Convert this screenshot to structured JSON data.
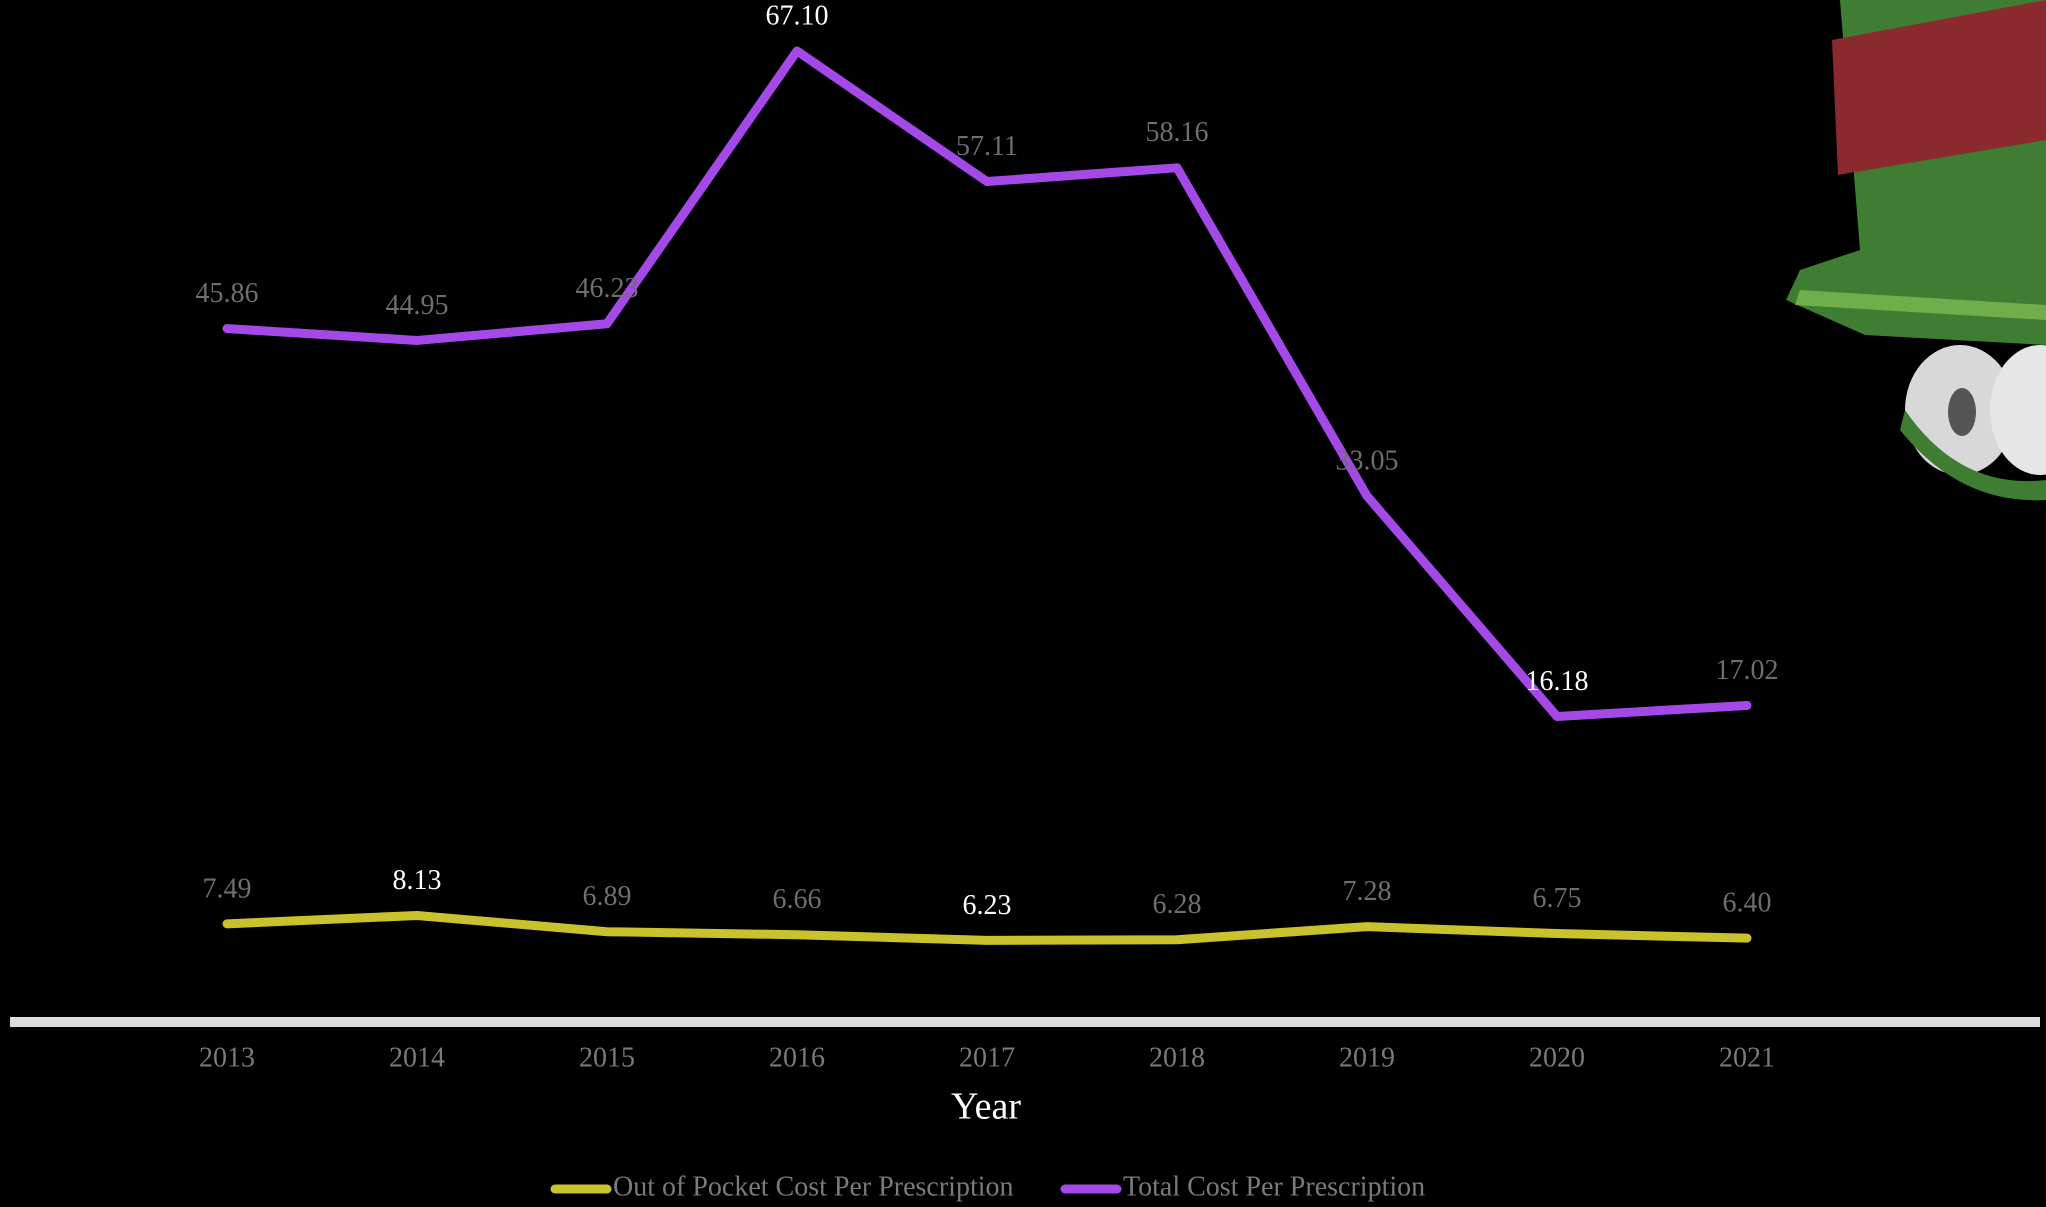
{
  "chart_data": {
    "type": "line",
    "x_label": "Year",
    "categories": [
      "2013",
      "2014",
      "2015",
      "2016",
      "2017",
      "2018",
      "2019",
      "2020",
      "2021"
    ],
    "series": [
      {
        "name": "Out of Pocket Cost Per Prescription",
        "color": "#c9c22c",
        "values": [
          7.49,
          8.13,
          6.89,
          6.66,
          6.23,
          6.28,
          7.28,
          6.75,
          6.4
        ],
        "value_labels": [
          "7.49",
          "8.13",
          "6.89",
          "6.66",
          "6.23",
          "6.28",
          "7.28",
          "6.75",
          "6.40"
        ]
      },
      {
        "name": "Total Cost Per Prescription",
        "color": "#a449e8",
        "axis": "y2",
        "values": [
          45.86,
          44.95,
          46.23,
          67.1,
          57.11,
          58.16,
          33.05,
          16.18,
          17.02
        ],
        "value_labels": [
          "45.86",
          "44.95",
          "46.23",
          "67.10",
          "57.11",
          "58.16",
          "33.05",
          "16.18",
          "17.02"
        ]
      }
    ],
    "ylim": [
      0,
      78
    ],
    "y2lim": [
      -7.2,
      71
    ],
    "grid": false,
    "legend": "bottom"
  }
}
